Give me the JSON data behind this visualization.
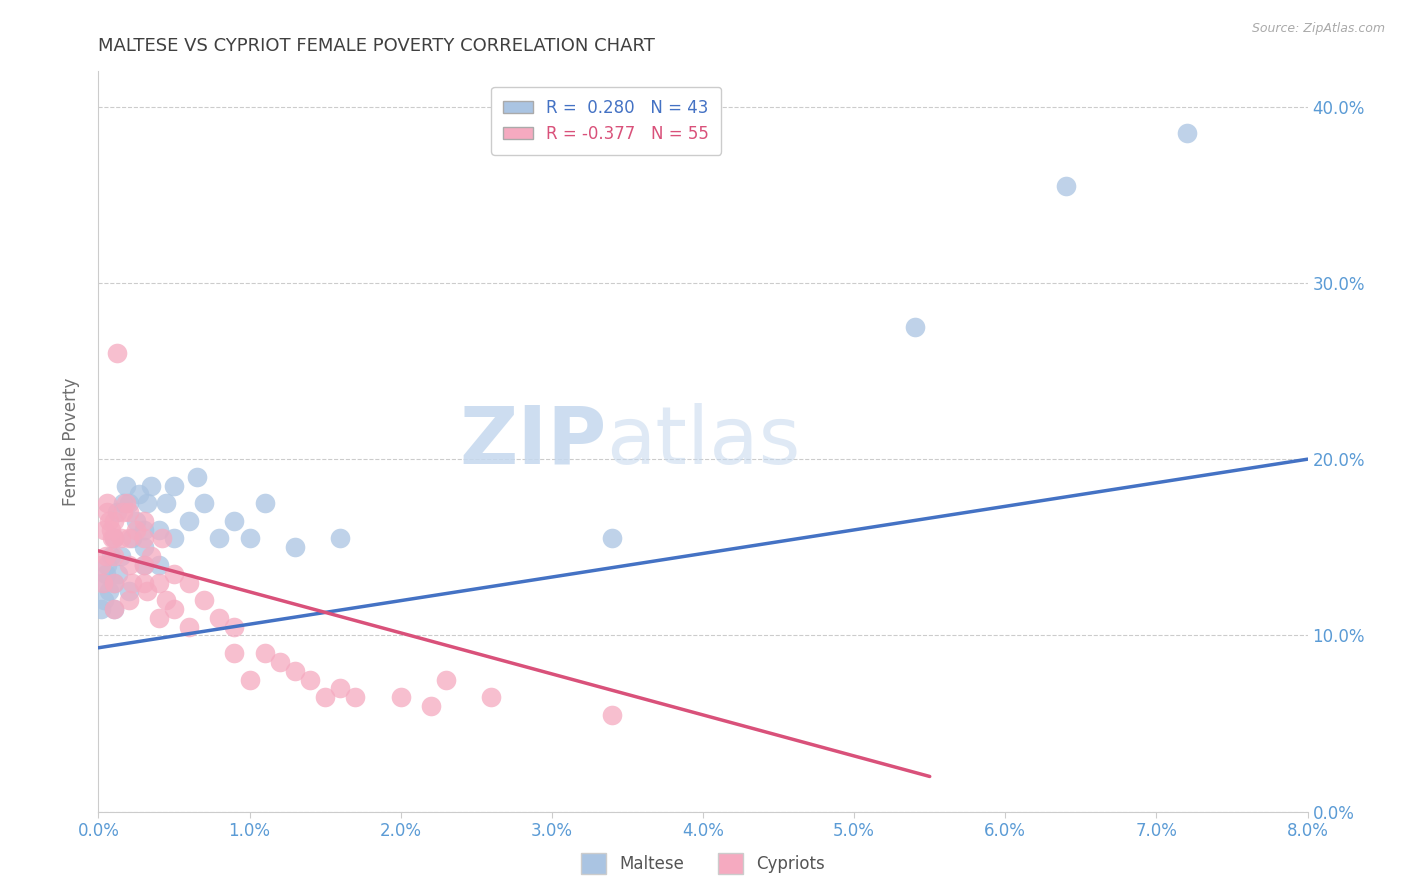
{
  "title": "MALTESE VS CYPRIOT FEMALE POVERTY CORRELATION CHART",
  "source_text": "Source: ZipAtlas.com",
  "ylabel": "Female Poverty",
  "xlim": [
    0.0,
    0.08
  ],
  "ylim": [
    0.0,
    0.42
  ],
  "yticks": [
    0.0,
    0.1,
    0.2,
    0.3,
    0.4
  ],
  "xticks": [
    0.0,
    0.01,
    0.02,
    0.03,
    0.04,
    0.05,
    0.06,
    0.07,
    0.08
  ],
  "maltese_color": "#aac4e2",
  "cypriot_color": "#f5aac0",
  "maltese_line_color": "#4472c4",
  "cypriot_line_color": "#d9517a",
  "maltese_R": 0.28,
  "maltese_N": 43,
  "cypriot_R": -0.377,
  "cypriot_N": 55,
  "title_color": "#404040",
  "axis_color": "#5b9bd5",
  "grid_color": "#cccccc",
  "background_color": "#ffffff",
  "maltese_x": [
    0.0002,
    0.0003,
    0.0004,
    0.0005,
    0.0006,
    0.0007,
    0.0008,
    0.001,
    0.001,
    0.001,
    0.0012,
    0.0013,
    0.0015,
    0.0016,
    0.0018,
    0.002,
    0.002,
    0.0022,
    0.0025,
    0.0027,
    0.003,
    0.003,
    0.003,
    0.0032,
    0.0035,
    0.004,
    0.004,
    0.0045,
    0.005,
    0.005,
    0.006,
    0.0065,
    0.007,
    0.008,
    0.009,
    0.01,
    0.011,
    0.013,
    0.016,
    0.034,
    0.054,
    0.064,
    0.072
  ],
  "maltese_y": [
    0.115,
    0.13,
    0.12,
    0.135,
    0.14,
    0.125,
    0.145,
    0.115,
    0.13,
    0.155,
    0.17,
    0.135,
    0.145,
    0.175,
    0.185,
    0.125,
    0.175,
    0.155,
    0.165,
    0.18,
    0.14,
    0.15,
    0.16,
    0.175,
    0.185,
    0.14,
    0.16,
    0.175,
    0.155,
    0.185,
    0.165,
    0.19,
    0.175,
    0.155,
    0.165,
    0.155,
    0.175,
    0.15,
    0.155,
    0.155,
    0.275,
    0.355,
    0.385
  ],
  "cypriot_x": [
    0.0002,
    0.0003,
    0.0004,
    0.0005,
    0.0006,
    0.0006,
    0.0007,
    0.0008,
    0.0009,
    0.001,
    0.001,
    0.001,
    0.001,
    0.001,
    0.0012,
    0.0015,
    0.0016,
    0.0018,
    0.002,
    0.002,
    0.002,
    0.002,
    0.0022,
    0.0025,
    0.003,
    0.003,
    0.003,
    0.003,
    0.0032,
    0.0035,
    0.004,
    0.004,
    0.0042,
    0.0045,
    0.005,
    0.005,
    0.006,
    0.006,
    0.007,
    0.008,
    0.009,
    0.009,
    0.01,
    0.011,
    0.012,
    0.013,
    0.014,
    0.015,
    0.016,
    0.017,
    0.02,
    0.022,
    0.023,
    0.026,
    0.034
  ],
  "cypriot_y": [
    0.14,
    0.13,
    0.16,
    0.145,
    0.17,
    0.175,
    0.165,
    0.16,
    0.155,
    0.115,
    0.13,
    0.145,
    0.155,
    0.165,
    0.26,
    0.155,
    0.17,
    0.175,
    0.12,
    0.14,
    0.155,
    0.17,
    0.13,
    0.16,
    0.13,
    0.14,
    0.155,
    0.165,
    0.125,
    0.145,
    0.11,
    0.13,
    0.155,
    0.12,
    0.115,
    0.135,
    0.105,
    0.13,
    0.12,
    0.11,
    0.09,
    0.105,
    0.075,
    0.09,
    0.085,
    0.08,
    0.075,
    0.065,
    0.07,
    0.065,
    0.065,
    0.06,
    0.075,
    0.065,
    0.055
  ],
  "maltese_line_x0": 0.0,
  "maltese_line_y0": 0.093,
  "maltese_line_x1": 0.08,
  "maltese_line_y1": 0.2,
  "cypriot_line_x0": 0.0,
  "cypriot_line_y0": 0.148,
  "cypriot_line_x1": 0.055,
  "cypriot_line_y1": 0.02
}
